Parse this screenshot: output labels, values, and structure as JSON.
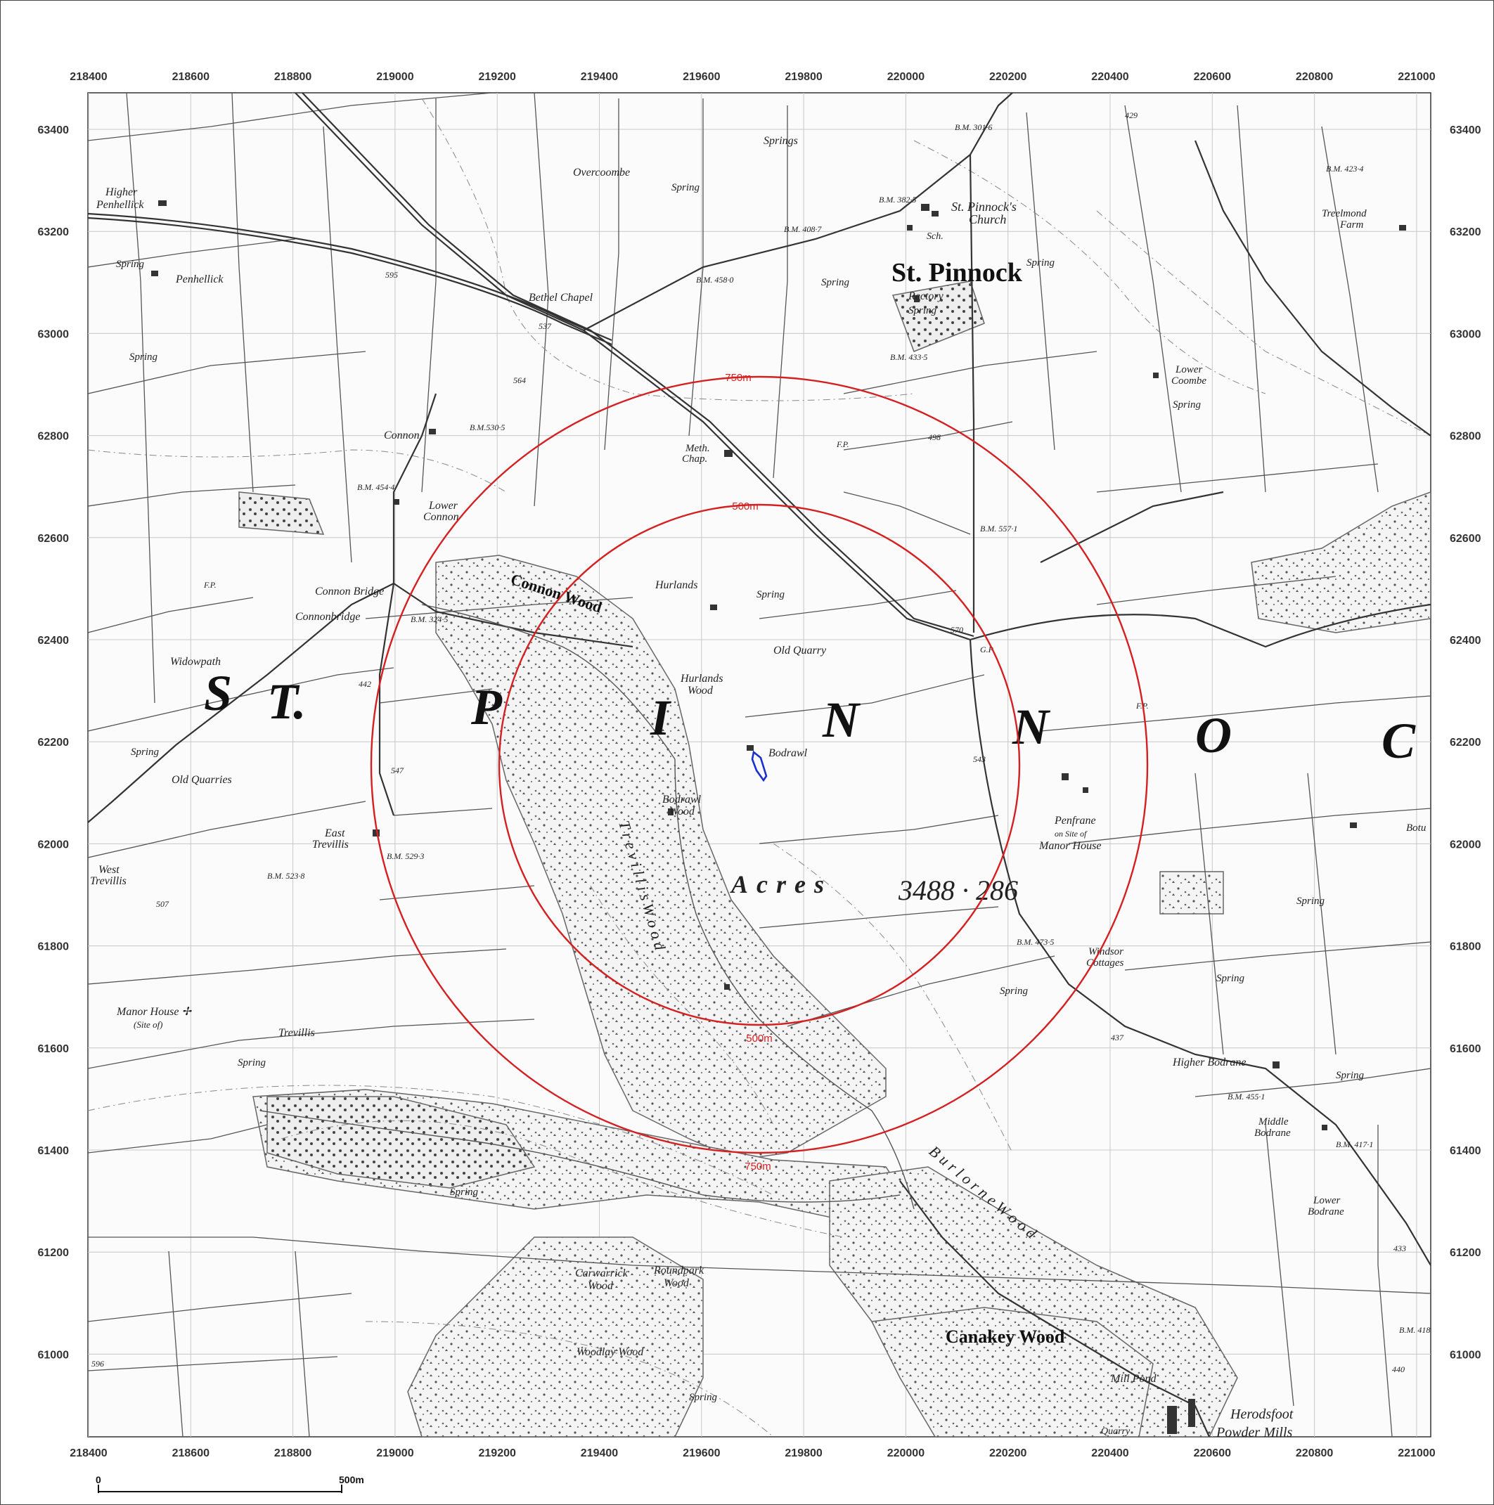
{
  "map": {
    "x_ticks": [
      "218400",
      "218600",
      "218800",
      "219000",
      "219200",
      "219400",
      "219600",
      "219800",
      "220000",
      "220200",
      "220400",
      "220600",
      "220800",
      "221000"
    ],
    "y_ticks": [
      "63400",
      "63200",
      "63000",
      "62800",
      "62600",
      "62400",
      "62200",
      "62000",
      "61800",
      "61600",
      "61400",
      "61200",
      "61000"
    ],
    "buffers": [
      {
        "label": "750m",
        "radius_m": 750
      },
      {
        "label": "500m",
        "radius_m": 500
      }
    ],
    "site_marker_color": "#1a2fd0",
    "buffer_color": "#d42020",
    "parish_letters": [
      "S",
      "T.",
      "P",
      "I",
      "N",
      "N",
      "O",
      "C"
    ],
    "acres_label": "Acres",
    "acres_value": "3488 · 286",
    "scale_bar": {
      "start": "0",
      "end": "500m"
    },
    "labels": {
      "st_pinnock": "St. Pinnock",
      "st_pinnocks_church": "St. Pinnock's",
      "church": "Church",
      "sch": "Sch.",
      "rectory": "Rectory",
      "higher_penhellick_1": "Higher",
      "higher_penhellick_2": "Penhellick",
      "penhellick": "Penhellick",
      "overcoombe": "Overcoombe",
      "bethel_chapel": "Bethel Chapel",
      "springs": "Springs",
      "connon": "Connon",
      "lower_connon_1": "Lower",
      "lower_connon_2": "Connon",
      "connon_bridge": "Connon Bridge",
      "connonbridge": "Connonbridge",
      "connon_wood": "Connon Wood",
      "meth_chap_1": "Meth.",
      "meth_chap_2": "Chap.",
      "hurlands": "Hurlands",
      "hurlands_wood_1": "Hurlands",
      "hurlands_wood_2": "Wood",
      "old_quarry": "Old Quarry",
      "bodrawl": "Bodrawl",
      "bodrawl_wood_1": "Bodrawl",
      "bodrawl_wood_2": "Wood",
      "trevillis_wood": "T r e v i l l i s   W o o d",
      "widowpath": "Widowpath",
      "old_quarries": "Old Quarries",
      "east_trevillis_1": "East",
      "east_trevillis_2": "Trevillis",
      "west_trevillis_1": "West",
      "west_trevillis_2": "Trevillis",
      "manor_house": "Manor House ✢",
      "site_of": "(Site of)",
      "trevillis": "Trevillis",
      "lower_coombe_1": "Lower",
      "lower_coombe_2": "Coombe",
      "treelmond_1": "Treelmond",
      "treelmond_2": "Farm",
      "penfrane": "Penfrane",
      "on_site_of": "on Site of",
      "manor_house_2": "Manor House",
      "windsor_1": "Windsor",
      "windsor_2": "Cottages",
      "higher_bodrane": "Higher Bodrane",
      "middle_bodrane_1": "Middle",
      "middle_bodrane_2": "Bodrane",
      "lower_bodrane_1": "Lower",
      "lower_bodrane_2": "Bodrane",
      "burlorne_wood": "B u r l o r n e   W o o d",
      "carwarrick_1": "Carwarrick",
      "carwarrick_2": "Wood",
      "roundpark_1": "Roundpark",
      "roundpark_2": "Wood",
      "woodlay_wood": "Woodlay Wood",
      "canakey_wood": "Canakey Wood",
      "mill_pond": "Mill Pond",
      "herodsfoot": "Herodsfoot",
      "powder_mills": "Powder Mills",
      "quarry": "Quarry",
      "botu": "Botu",
      "spring": "Spring",
      "bm_301": "B.M. 301·6",
      "bm_382": "B.M. 382·5",
      "bm_408": "B.M. 408·7",
      "bm_458": "B.M. 458·0",
      "bm_433": "B.M. 433·5",
      "bm_423": "B.M. 423·4",
      "bm_530": "B.M.530·5",
      "bm_454": "B.M. 454·4",
      "bm_324": "B.M. 324·5",
      "bm_557": "B.M. 557·1",
      "bm_529": "B.M. 529·3",
      "bm_523": "B.M. 523·8",
      "bm_473": "B.M. 473·5",
      "bm_455": "B.M. 455·1",
      "bm_417": "B.M. 417·1",
      "bm_418": "B.M. 418",
      "h595": "595",
      "h537": "537",
      "h564": "564",
      "h498": "498",
      "h429": "429",
      "h570": "570",
      "h442": "442",
      "h547": "547",
      "h543": "543",
      "h507": "507",
      "h437": "437",
      "h433": "433",
      "h440": "440",
      "h596": "596",
      "fp": "F.P.",
      "gp": "G.P."
    }
  }
}
